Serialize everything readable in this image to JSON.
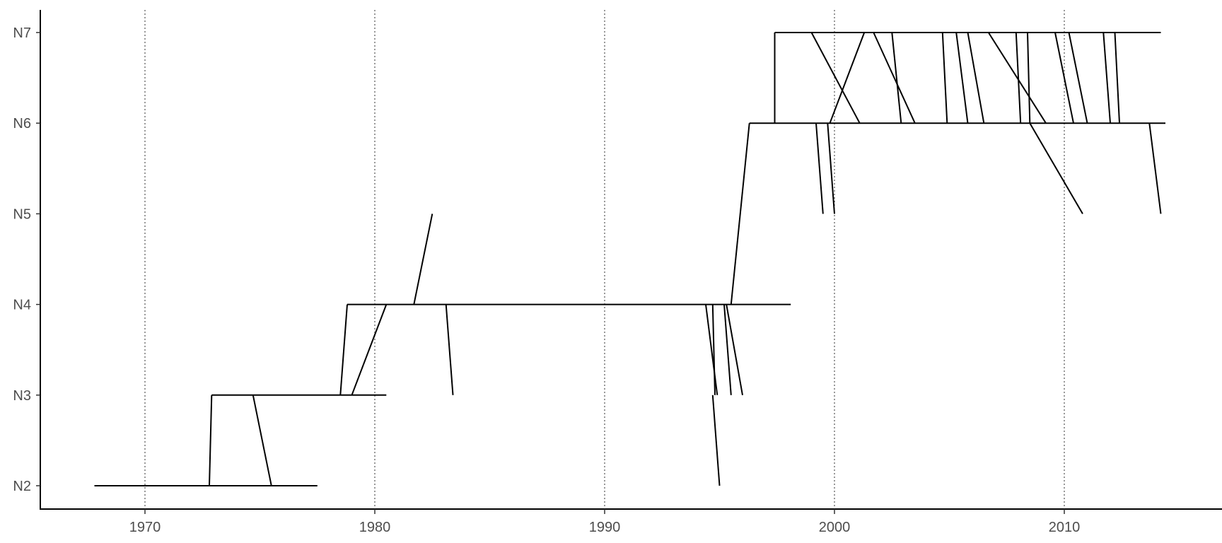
{
  "chart_data": {
    "type": "line",
    "title": "",
    "xlabel": "",
    "ylabel": "",
    "grid": "vertical dotted",
    "legend": "none",
    "xlim": [
      1965.5,
      2016.5
    ],
    "ylim": [
      "N2",
      "N7"
    ],
    "x_ticks": [
      1970,
      1980,
      1990,
      2000,
      2010
    ],
    "y_ticks": [
      "N2",
      "N3",
      "N4",
      "N5",
      "N6",
      "N7"
    ],
    "series": [
      {
        "values": [
          [
            [
              1967.8,
              "N2"
            ],
            [
              1977.5,
              "N2"
            ]
          ],
          [
            [
              1972.8,
              "N2"
            ],
            [
              1972.9,
              "N3"
            ]
          ],
          [
            [
              1972.9,
              "N3"
            ],
            [
              1980.5,
              "N3"
            ]
          ],
          [
            [
              1974.7,
              "N3"
            ],
            [
              1975.5,
              "N2"
            ]
          ],
          [
            [
              1978.5,
              "N3"
            ],
            [
              1978.8,
              "N4"
            ]
          ],
          [
            [
              1978.8,
              "N4"
            ],
            [
              1998.1,
              "N4"
            ]
          ],
          [
            [
              1979.0,
              "N3"
            ],
            [
              1980.5,
              "N4"
            ]
          ],
          [
            [
              1981.7,
              "N4"
            ],
            [
              1982.5,
              "N5"
            ]
          ],
          [
            [
              1983.1,
              "N4"
            ],
            [
              1983.4,
              "N3"
            ]
          ],
          [
            [
              1994.4,
              "N4"
            ],
            [
              1994.9,
              "N3"
            ]
          ],
          [
            [
              1994.7,
              "N3"
            ],
            [
              1995.0,
              "N2"
            ]
          ],
          [
            [
              1994.7,
              "N4"
            ],
            [
              1994.8,
              "N3"
            ]
          ],
          [
            [
              1995.2,
              "N4"
            ],
            [
              1995.5,
              "N3"
            ]
          ],
          [
            [
              1995.3,
              "N4"
            ],
            [
              1996.0,
              "N3"
            ]
          ],
          [
            [
              1995.5,
              "N4"
            ],
            [
              1996.3,
              "N6"
            ]
          ],
          [
            [
              1996.3,
              "N6"
            ],
            [
              2014.4,
              "N6"
            ]
          ],
          [
            [
              1997.4,
              "N6"
            ],
            [
              1997.4,
              "N7"
            ]
          ],
          [
            [
              1997.4,
              "N7"
            ],
            [
              2014.2,
              "N7"
            ]
          ],
          [
            [
              1999.2,
              "N6"
            ],
            [
              1999.5,
              "N5"
            ]
          ],
          [
            [
              1999.7,
              "N6"
            ],
            [
              2000.0,
              "N5"
            ]
          ],
          [
            [
              1999.0,
              "N7"
            ],
            [
              2001.1,
              "N6"
            ]
          ],
          [
            [
              1999.8,
              "N6"
            ],
            [
              2001.3,
              "N7"
            ]
          ],
          [
            [
              2001.7,
              "N7"
            ],
            [
              2003.5,
              "N6"
            ]
          ],
          [
            [
              2002.5,
              "N7"
            ],
            [
              2002.9,
              "N6"
            ]
          ],
          [
            [
              2004.7,
              "N7"
            ],
            [
              2004.9,
              "N6"
            ]
          ],
          [
            [
              2005.3,
              "N7"
            ],
            [
              2005.8,
              "N6"
            ]
          ],
          [
            [
              2005.8,
              "N7"
            ],
            [
              2006.5,
              "N6"
            ]
          ],
          [
            [
              2006.7,
              "N7"
            ],
            [
              2009.2,
              "N6"
            ]
          ],
          [
            [
              2007.9,
              "N7"
            ],
            [
              2008.1,
              "N6"
            ]
          ],
          [
            [
              2008.4,
              "N7"
            ],
            [
              2008.5,
              "N6"
            ]
          ],
          [
            [
              2008.5,
              "N6"
            ],
            [
              2010.8,
              "N5"
            ]
          ],
          [
            [
              2009.6,
              "N7"
            ],
            [
              2010.4,
              "N6"
            ]
          ],
          [
            [
              2010.2,
              "N7"
            ],
            [
              2011.0,
              "N6"
            ]
          ],
          [
            [
              2011.7,
              "N7"
            ],
            [
              2012.0,
              "N6"
            ]
          ],
          [
            [
              2012.2,
              "N7"
            ],
            [
              2012.4,
              "N6"
            ]
          ],
          [
            [
              2013.7,
              "N6"
            ],
            [
              2014.2,
              "N5"
            ]
          ]
        ]
      }
    ]
  }
}
